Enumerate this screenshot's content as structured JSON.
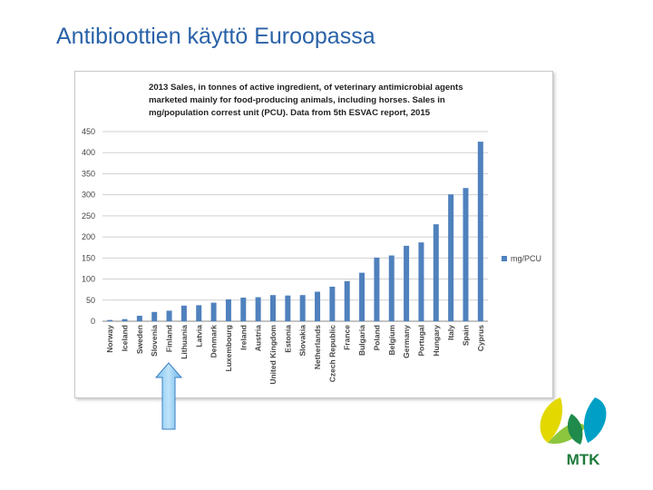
{
  "slide_title": "Antibioottien käyttö Euroopassa",
  "logo_text": "MTK",
  "chart_data": {
    "type": "bar",
    "title": "2013 Sales, in tonnes of active ingredient, of veterinary antimicrobial agents marketed mainly for food-producing animals, including horses. Sales in mg/population correst unit (PCU). Data from 5th ESVAC report, 2015",
    "categories": [
      "Norway",
      "Iceland",
      "Sweden",
      "Slovenia",
      "Finland",
      "Lithuania",
      "Latvia",
      "Denmark",
      "Luxembourg",
      "Ireland",
      "Austria",
      "United Kingdom",
      "Estonia",
      "Slovakia",
      "Netherlands",
      "Czech Republic",
      "France",
      "Bulgaria",
      "Poland",
      "Belgium",
      "Germany",
      "Portugal",
      "Hungary",
      "Italy",
      "Spain",
      "Cyprus"
    ],
    "series": [
      {
        "name": "mg/PCU",
        "color": "#4f81bd",
        "values": [
          3,
          5,
          13,
          22,
          25,
          37,
          38,
          44,
          52,
          56,
          57,
          62,
          61,
          62,
          70,
          82,
          95,
          115,
          151,
          156,
          179,
          187,
          230,
          301,
          316,
          426
        ]
      }
    ],
    "ylim": [
      0,
      450
    ],
    "yticks": [
      0,
      50,
      100,
      150,
      200,
      250,
      300,
      350,
      400,
      450
    ],
    "grid": true,
    "legend": "right"
  }
}
